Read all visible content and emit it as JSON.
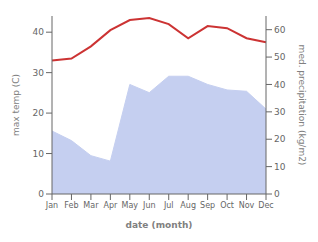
{
  "chart_data": {
    "type": "line",
    "categories": [
      "Jan",
      "Feb",
      "Mar",
      "Apr",
      "May",
      "Jun",
      "Jul",
      "Aug",
      "Sep",
      "Oct",
      "Nov",
      "Dec"
    ],
    "xlabel": "date (month)",
    "ylabel": "max temp (C)",
    "y2label": "med. precipitation (kg/m2)",
    "ylim": [
      0,
      44
    ],
    "yticks": [
      0,
      10,
      20,
      30,
      40
    ],
    "y2lim": [
      0,
      65
    ],
    "y2ticks": [
      0,
      10,
      20,
      30,
      40,
      50,
      60
    ],
    "series": [
      {
        "type": "area",
        "axis": "y2",
        "color": "#c5cff0",
        "values": [
          23.0,
          19.5,
          14.0,
          12.0,
          40.0,
          37.0,
          43.0,
          43.0,
          40.0,
          38.0,
          37.5,
          31.0
        ]
      },
      {
        "type": "line",
        "color": "#cc3333",
        "values": [
          33.0,
          33.5,
          36.5,
          40.5,
          43.0,
          43.5,
          42.0,
          38.5,
          41.5,
          41.0,
          38.5,
          37.5
        ]
      }
    ]
  }
}
